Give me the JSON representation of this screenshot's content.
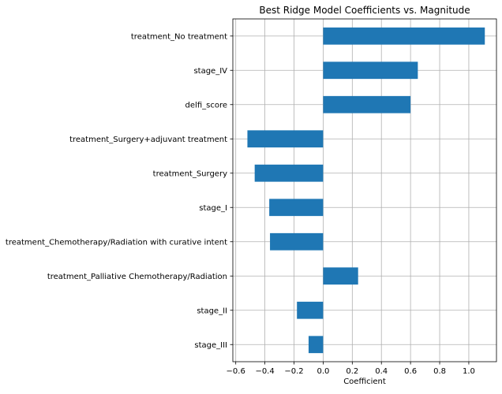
{
  "chart_data": {
    "type": "bar",
    "orientation": "horizontal",
    "title": "Best Ridge Model Coefficients vs. Magnitude",
    "xlabel": "Coefficient",
    "ylabel": "",
    "categories": [
      "treatment_No treatment",
      "stage_IV",
      "delfi_score",
      "treatment_Surgery+adjuvant treatment",
      "treatment_Surgery",
      "stage_I",
      "treatment_Chemotherapy/Radiation with curative intent",
      "treatment_Palliative Chemotherapy/Radiation",
      "stage_II",
      "stage_III"
    ],
    "values": [
      1.11,
      0.65,
      0.6,
      -0.52,
      -0.47,
      -0.37,
      -0.365,
      0.24,
      -0.18,
      -0.1
    ],
    "xlim": [
      -0.62,
      1.19
    ],
    "xticks": [
      -0.6,
      -0.4,
      -0.2,
      0.0,
      0.2,
      0.4,
      0.6,
      0.8,
      1.0
    ],
    "xtick_labels": [
      "−0.6",
      "−0.4",
      "−0.2",
      "0.0",
      "0.2",
      "0.4",
      "0.6",
      "0.8",
      "1.0"
    ],
    "grid": true,
    "bar_color": "#1f77b4",
    "legend": "none"
  }
}
